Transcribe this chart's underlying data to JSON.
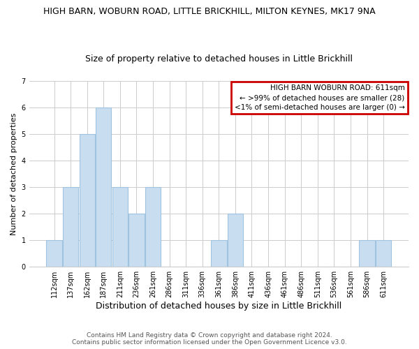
{
  "title_line1": "HIGH BARN, WOBURN ROAD, LITTLE BRICKHILL, MILTON KEYNES, MK17 9NA",
  "title_line2": "Size of property relative to detached houses in Little Brickhill",
  "xlabel": "Distribution of detached houses by size in Little Brickhill",
  "ylabel": "Number of detached properties",
  "bin_labels": [
    "112sqm",
    "137sqm",
    "162sqm",
    "187sqm",
    "211sqm",
    "236sqm",
    "261sqm",
    "286sqm",
    "311sqm",
    "336sqm",
    "361sqm",
    "386sqm",
    "411sqm",
    "436sqm",
    "461sqm",
    "486sqm",
    "511sqm",
    "536sqm",
    "561sqm",
    "586sqm",
    "611sqm"
  ],
  "all_heights": [
    1,
    3,
    5,
    6,
    3,
    2,
    3,
    0,
    0,
    0,
    1,
    2,
    0,
    0,
    0,
    0,
    0,
    0,
    0,
    1,
    1
  ],
  "bar_color": "#c8ddf0",
  "bar_edge_color": "#a0c4e0",
  "ylim": [
    0,
    7
  ],
  "yticks": [
    0,
    1,
    2,
    3,
    4,
    5,
    6,
    7
  ],
  "legend_title": "HIGH BARN WOBURN ROAD: 611sqm",
  "legend_line1": "← >99% of detached houses are smaller (28)",
  "legend_line2": "<1% of semi-detached houses are larger (0) →",
  "legend_box_color": "#ffffff",
  "legend_box_edge_color": "#cc0000",
  "footer_line1": "Contains HM Land Registry data © Crown copyright and database right 2024.",
  "footer_line2": "Contains public sector information licensed under the Open Government Licence v3.0.",
  "background_color": "#ffffff",
  "grid_color": "#cccccc",
  "title1_fontsize": 9,
  "title2_fontsize": 9,
  "ylabel_fontsize": 8,
  "xlabel_fontsize": 9,
  "tick_fontsize": 7,
  "legend_fontsize": 7.5,
  "footer_fontsize": 6.5
}
